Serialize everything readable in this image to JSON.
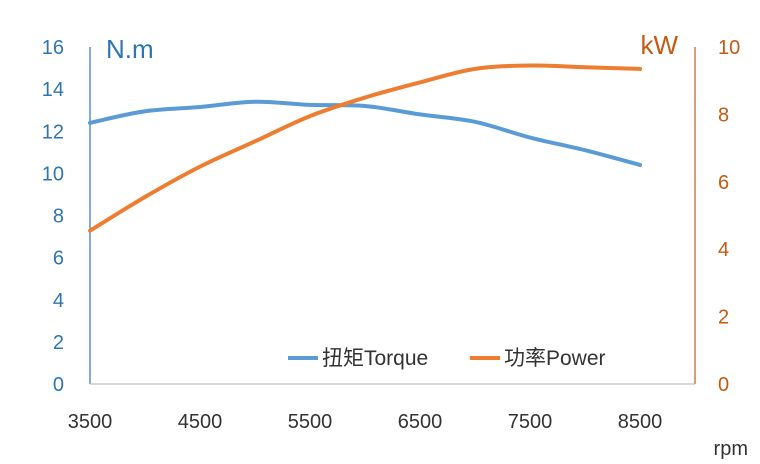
{
  "chart_data": {
    "type": "line",
    "x": [
      3500,
      4000,
      4500,
      5000,
      5500,
      6000,
      6500,
      7000,
      7500,
      8000,
      8500
    ],
    "xlim": [
      3500,
      9000
    ],
    "x_ticks": [
      "3500",
      "4500",
      "5500",
      "6500",
      "7500",
      "8500"
    ],
    "xlabel": "rpm",
    "y_left": {
      "label": "N.m",
      "lim": [
        0,
        16
      ],
      "ticks": [
        "0",
        "2",
        "4",
        "6",
        "8",
        "10",
        "12",
        "14",
        "16"
      ],
      "color": "#2e75b6"
    },
    "y_right": {
      "label": "kW",
      "lim": [
        0,
        10
      ],
      "ticks": [
        "0",
        "2",
        "4",
        "6",
        "8",
        "10"
      ],
      "color": "#c55a11"
    },
    "series": [
      {
        "name": "扭矩Torque",
        "axis": "left",
        "color": "#5b9bd5",
        "values": [
          12.4,
          12.95,
          13.15,
          13.4,
          13.25,
          13.2,
          12.8,
          12.45,
          11.7,
          11.1,
          10.4
        ]
      },
      {
        "name": "功率Power",
        "axis": "right",
        "color": "#ed7d31",
        "values": [
          4.55,
          5.55,
          6.45,
          7.2,
          7.95,
          8.5,
          8.95,
          9.35,
          9.45,
          9.4,
          9.35
        ]
      }
    ],
    "legend": "bottom-right",
    "grid": false
  }
}
